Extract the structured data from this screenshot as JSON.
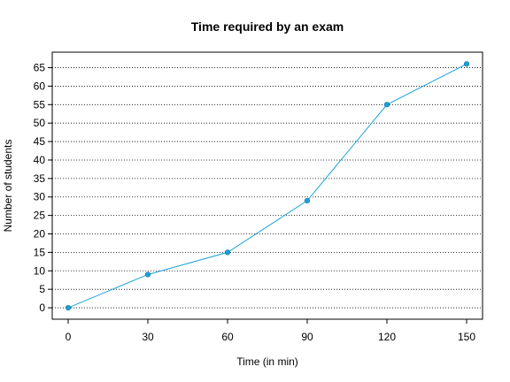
{
  "chart_data": {
    "type": "line",
    "title": "Time required by an exam",
    "xlabel": "Time (in min)",
    "ylabel": "Number of students",
    "x": [
      0,
      30,
      60,
      90,
      120,
      150
    ],
    "series": [
      {
        "values": [
          0,
          9,
          15,
          29,
          55,
          66
        ],
        "color": "#1aa3d9"
      }
    ],
    "xticks": [
      0,
      30,
      60,
      90,
      120,
      150
    ],
    "yticks": [
      0,
      5,
      10,
      15,
      20,
      25,
      30,
      35,
      40,
      45,
      50,
      55,
      60,
      65
    ],
    "xlim": [
      -6,
      156
    ],
    "ylim": [
      -3.1,
      69.2
    ],
    "grid": "horizontal-dotted",
    "marker": "filled-circle"
  }
}
